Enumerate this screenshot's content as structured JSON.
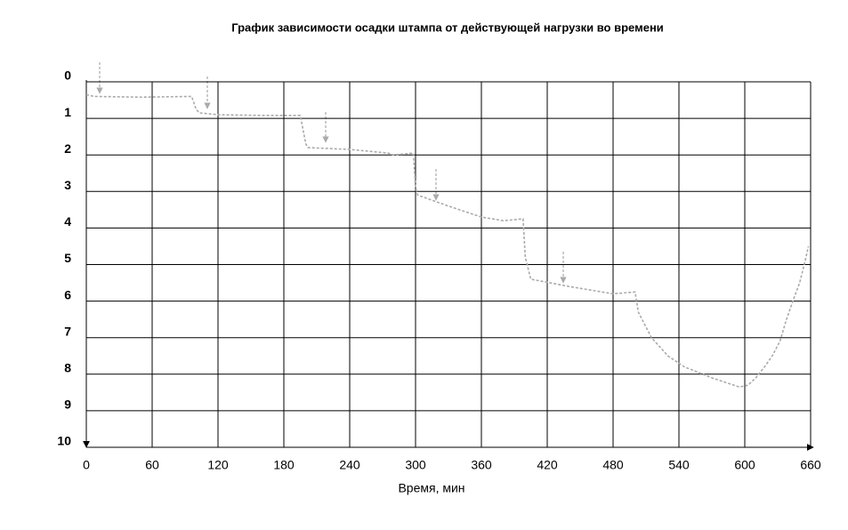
{
  "chart_data": {
    "type": "line",
    "title": "График зависимости осадки штампа от действующей нагрузки во времени",
    "x_label": "Время, мин",
    "x": [
      0,
      7,
      50,
      96,
      100,
      103,
      120,
      160,
      195,
      200,
      202,
      240,
      275,
      280,
      298,
      300,
      302,
      330,
      360,
      380,
      398,
      400,
      405,
      440,
      480,
      500,
      503,
      515,
      530,
      545,
      570,
      595,
      603,
      610,
      618,
      625,
      632,
      638,
      645,
      650,
      655,
      658
    ],
    "values": [
      0.35,
      0.4,
      0.42,
      0.4,
      0.75,
      0.85,
      0.9,
      0.92,
      0.92,
      1.7,
      1.8,
      1.85,
      1.95,
      2.0,
      1.95,
      2.9,
      3.1,
      3.4,
      3.7,
      3.8,
      3.75,
      4.8,
      5.4,
      5.6,
      5.8,
      5.75,
      6.3,
      7.0,
      7.5,
      7.8,
      8.1,
      8.35,
      8.3,
      8.1,
      7.8,
      7.5,
      7.1,
      6.5,
      5.9,
      5.5,
      4.9,
      4.5
    ],
    "color": "#aaaaaa",
    "xlim": [
      0,
      660
    ],
    "xticks": [
      0,
      60,
      120,
      180,
      240,
      300,
      360,
      420,
      480,
      540,
      600,
      660
    ],
    "ylim": [
      0,
      10
    ],
    "yticks": [
      0,
      1,
      2,
      3,
      4,
      5,
      6,
      7,
      8,
      9,
      10
    ],
    "y_inverted": true,
    "grid": true
  }
}
